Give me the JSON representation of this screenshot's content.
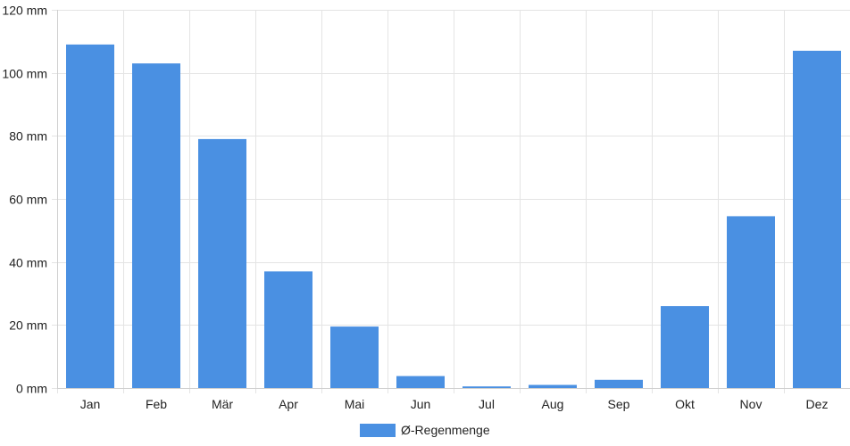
{
  "chart_data": {
    "type": "bar",
    "categories": [
      "Jan",
      "Feb",
      "Mär",
      "Apr",
      "Mai",
      "Jun",
      "Jul",
      "Aug",
      "Sep",
      "Okt",
      "Nov",
      "Dez"
    ],
    "series": [
      {
        "name": "Ø-Regenmenge",
        "values": [
          109,
          103,
          79,
          37,
          19.5,
          3.8,
          0.5,
          1,
          2.6,
          26,
          54.5,
          107
        ],
        "color": "#4a90e2"
      }
    ],
    "ylim": [
      0,
      120
    ],
    "yticks": [
      0,
      20,
      40,
      60,
      80,
      100,
      120
    ],
    "y_tick_suffix": " mm",
    "grid": true,
    "legend_position": "bottom-center"
  }
}
